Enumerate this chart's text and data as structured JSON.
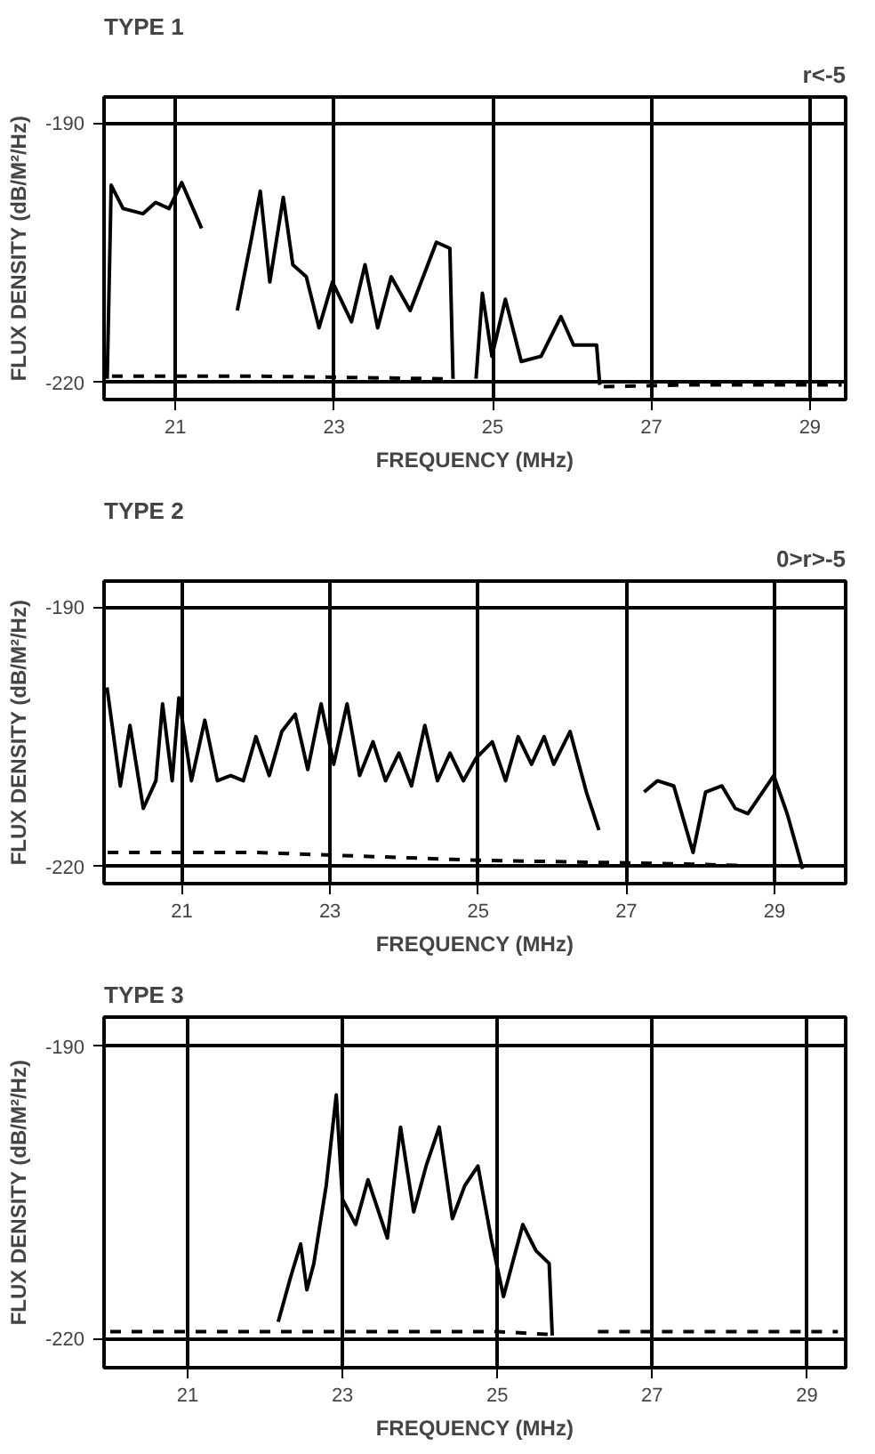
{
  "chart_data": [
    {
      "type": "line",
      "title": "TYPE 1",
      "subtitle": "r<-5",
      "xlabel": "FREQUENCY (MHz)",
      "ylabel": "FLUX DENSITY (dB/M²/Hz)",
      "xlim": [
        20.1,
        29.45
      ],
      "ylim": [
        -222,
        -187
      ],
      "xticks": [
        21,
        23,
        25,
        27,
        29
      ],
      "yticks": [
        -190,
        -220
      ],
      "grid": true,
      "marker": "none",
      "series": [
        {
          "color": "#000000",
          "line_style": "solid",
          "x": [
            20.14,
            20.19,
            20.34,
            20.59,
            20.75,
            20.92,
            21.08,
            21.33,
            21.5,
            21.78,
            21.95,
            22.07,
            22.19,
            22.36,
            22.48,
            22.65,
            22.81,
            22.98,
            23.22,
            23.39,
            23.55,
            23.72,
            23.96,
            24.29,
            24.46,
            24.5,
            24.65,
            24.79,
            24.87,
            24.99,
            25.16,
            25.36,
            25.61,
            25.86,
            26.02,
            26.31,
            26.35
          ],
          "values": [
            -219.6,
            -197.2,
            -199.9,
            -200.5,
            -199.2,
            -199.9,
            -196.9,
            -202.2,
            null,
            -211.7,
            -203.8,
            -197.9,
            -208.4,
            -198.6,
            -206.4,
            -207.8,
            -213.7,
            -208.4,
            -213.0,
            -206.4,
            -213.7,
            -207.8,
            -211.7,
            -203.8,
            -204.5,
            -219.6,
            null,
            -219.6,
            -209.7,
            -217.0,
            -210.4,
            -217.6,
            -217.0,
            -212.4,
            -215.7,
            -215.7,
            -220.3
          ]
        },
        {
          "color": "#000000",
          "line_style": "dashed",
          "x": [
            20.2,
            22.0,
            24.4,
            24.5,
            26.4,
            27.5,
            29.4
          ],
          "values": [
            -219.3,
            -219.3,
            -219.6,
            null,
            -220.5,
            -220.3,
            -220.3
          ]
        }
      ]
    },
    {
      "type": "line",
      "title": "TYPE 2",
      "subtitle": "0>r>-5",
      "xlabel": "FREQUENCY (MHz)",
      "ylabel": "FLUX DENSITY (dB/M²/Hz)",
      "xlim": [
        19.95,
        29.96
      ],
      "ylim": [
        -222,
        -187
      ],
      "xticks": [
        21,
        23,
        25,
        27,
        29
      ],
      "yticks": [
        -190,
        -220
      ],
      "grid": true,
      "marker": "none",
      "series": [
        {
          "color": "#000000",
          "line_style": "solid",
          "x": [
            19.99,
            20.17,
            20.3,
            20.48,
            20.65,
            20.74,
            20.87,
            20.96,
            21.13,
            21.31,
            21.48,
            21.66,
            21.83,
            22.0,
            22.18,
            22.35,
            22.53,
            22.7,
            22.88,
            23.05,
            23.23,
            23.4,
            23.58,
            23.75,
            23.93,
            24.1,
            24.28,
            24.45,
            24.62,
            24.8,
            24.97,
            25.19,
            25.37,
            25.54,
            25.72,
            25.89,
            26.02,
            26.24,
            26.46,
            26.63,
            26.9,
            27.24,
            27.42,
            27.64,
            27.9,
            28.07,
            28.29,
            28.47,
            28.64,
            28.99,
            29.17,
            29.38
          ],
          "values": [
            -199.3,
            -210.7,
            -203.7,
            -213.3,
            -210.1,
            -201.2,
            -210.1,
            -200.5,
            -210.1,
            -203.1,
            -210.1,
            -209.5,
            -210.1,
            -205.0,
            -209.5,
            -204.4,
            -202.4,
            -208.8,
            -201.2,
            -208.2,
            -201.2,
            -209.5,
            -205.6,
            -210.1,
            -206.9,
            -210.7,
            -203.7,
            -210.1,
            -206.9,
            -210.1,
            -207.5,
            -205.6,
            -210.1,
            -205.0,
            -208.2,
            -205.0,
            -208.2,
            -204.4,
            -211.4,
            -215.8,
            null,
            -211.4,
            -210.1,
            -210.7,
            -218.4,
            -211.4,
            -210.7,
            -213.3,
            -213.9,
            -209.5,
            -213.9,
            -220.3
          ]
        },
        {
          "color": "#000000",
          "line_style": "dashed",
          "x": [
            20.0,
            21.2,
            22.0,
            23.0,
            25.0,
            27.0,
            28.6
          ],
          "values": [
            -218.4,
            -218.4,
            -218.4,
            -218.7,
            -219.3,
            -219.6,
            -219.9
          ]
        }
      ]
    },
    {
      "type": "line",
      "title": "TYPE 3",
      "xlabel": "FREQUENCY (MHz)",
      "ylabel": "FLUX DENSITY (dB/M²/Hz)",
      "xlim": [
        19.92,
        29.5
      ],
      "ylim": [
        -223,
        -187
      ],
      "xticks": [
        21,
        23,
        25,
        27,
        29
      ],
      "yticks": [
        -190,
        -220
      ],
      "grid": true,
      "marker": "none",
      "series": [
        {
          "color": "#000000",
          "line_style": "solid",
          "x": [
            22.17,
            22.33,
            22.46,
            22.54,
            22.63,
            22.79,
            22.92,
            23.0,
            23.17,
            23.33,
            23.58,
            23.75,
            23.92,
            24.08,
            24.25,
            24.42,
            24.58,
            24.75,
            24.92,
            25.08,
            25.33,
            25.5,
            25.67,
            25.71
          ],
          "values": [
            -218.3,
            -213.7,
            -210.3,
            -215.0,
            -212.3,
            -204.3,
            -195.0,
            -205.7,
            -208.3,
            -203.7,
            -209.7,
            -198.3,
            -207.0,
            -202.3,
            -198.3,
            -207.7,
            -204.3,
            -202.3,
            -209.7,
            -215.7,
            -208.3,
            -211.0,
            -212.3,
            -219.7
          ]
        },
        {
          "color": "#000000",
          "line_style": "dashed",
          "x": [
            20.0,
            21.5,
            23.0,
            25.0,
            25.7,
            25.9,
            26.3,
            28.0,
            29.4
          ],
          "values": [
            -219.3,
            -219.3,
            -219.3,
            -219.3,
            -219.6,
            null,
            -219.3,
            -219.3,
            -219.3
          ]
        }
      ]
    }
  ]
}
